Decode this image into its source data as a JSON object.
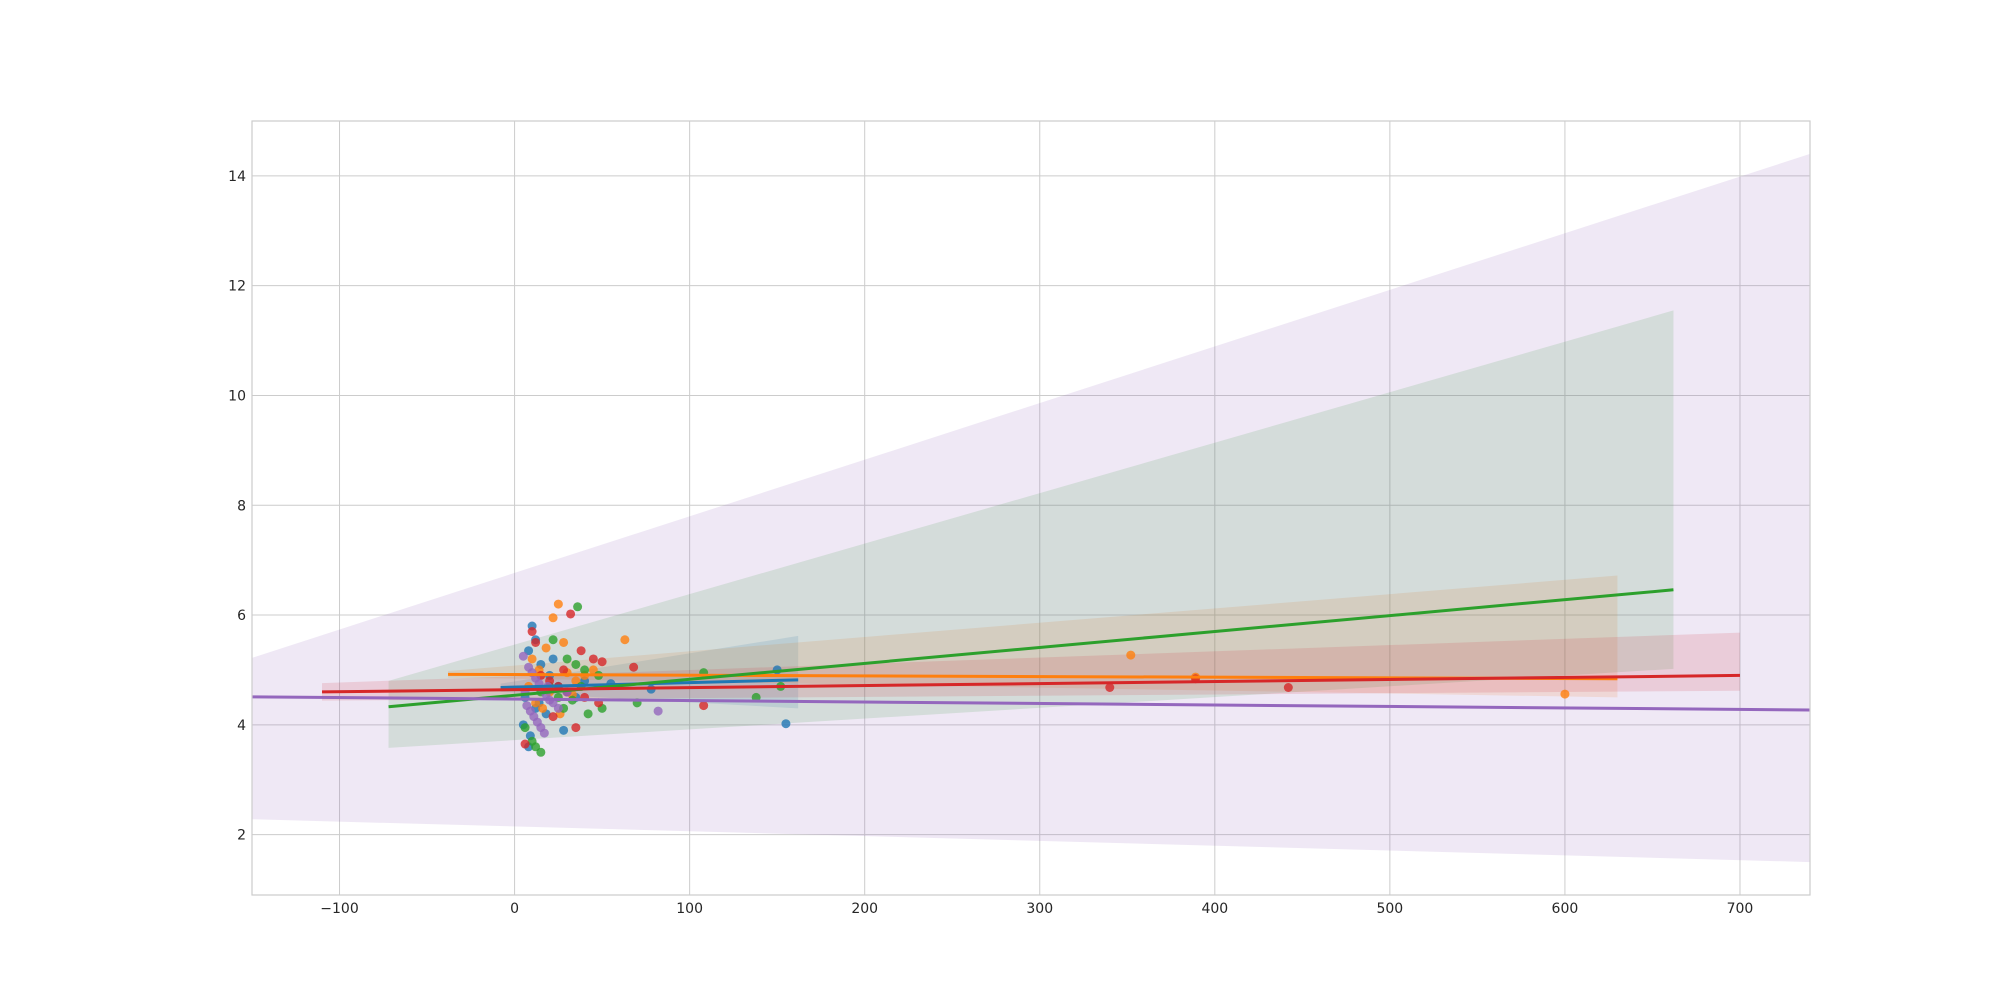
{
  "chart_data": {
    "type": "scatter",
    "title": "",
    "xlabel": "",
    "ylabel": "",
    "xlim": [
      -150,
      740
    ],
    "ylim": [
      0.9,
      15
    ],
    "x_ticks": [
      -100,
      0,
      100,
      200,
      300,
      400,
      500,
      600,
      700
    ],
    "y_ticks": [
      2,
      4,
      6,
      8,
      10,
      12,
      14
    ],
    "grid": true,
    "legend": "none",
    "series": [
      {
        "color": "#1f77b4",
        "fit": {
          "x": [
            -8,
            162
          ],
          "y": [
            4.68,
            4.82
          ]
        },
        "band": {
          "upper": [
            4.75,
            5.62
          ],
          "lower": [
            4.6,
            4.3
          ]
        },
        "points": [
          [
            10,
            5.8
          ],
          [
            12,
            5.55
          ],
          [
            8,
            5.35
          ],
          [
            15,
            5.1
          ],
          [
            20,
            4.9
          ],
          [
            25,
            4.7
          ],
          [
            6,
            4.5
          ],
          [
            14,
            4.4
          ],
          [
            18,
            4.2
          ],
          [
            5,
            4.0
          ],
          [
            9,
            3.8
          ],
          [
            30,
            4.6
          ],
          [
            40,
            4.8
          ],
          [
            55,
            4.75
          ],
          [
            78,
            4.65
          ],
          [
            150,
            5.0
          ],
          [
            155,
            4.02
          ],
          [
            28,
            3.9
          ],
          [
            8,
            3.6
          ],
          [
            12,
            4.3
          ],
          [
            35,
            4.5
          ],
          [
            22,
            5.2
          ]
        ]
      },
      {
        "color": "#ff7f0e",
        "fit": {
          "x": [
            -38,
            630
          ],
          "y": [
            4.92,
            4.84
          ]
        },
        "band": {
          "upper": [
            4.98,
            6.72
          ],
          "lower": [
            4.86,
            4.5
          ]
        },
        "points": [
          [
            25,
            6.2
          ],
          [
            22,
            5.95
          ],
          [
            63,
            5.55
          ],
          [
            28,
            5.5
          ],
          [
            18,
            5.4
          ],
          [
            10,
            5.2
          ],
          [
            14,
            5.0
          ],
          [
            30,
            4.95
          ],
          [
            35,
            4.8
          ],
          [
            45,
            5.0
          ],
          [
            20,
            4.6
          ],
          [
            12,
            4.4
          ],
          [
            26,
            4.2
          ],
          [
            40,
            4.9
          ],
          [
            352,
            5.27
          ],
          [
            389,
            4.87
          ],
          [
            600,
            4.56
          ],
          [
            16,
            4.3
          ],
          [
            8,
            4.7
          ],
          [
            33,
            4.55
          ]
        ]
      },
      {
        "color": "#2ca02c",
        "fit": {
          "x": [
            -72,
            662
          ],
          "y": [
            4.33,
            6.46
          ]
        },
        "band": {
          "upper": [
            4.8,
            11.55
          ],
          "lower": [
            3.58,
            5.02
          ]
        },
        "points": [
          [
            36,
            6.15
          ],
          [
            22,
            5.55
          ],
          [
            30,
            5.2
          ],
          [
            35,
            5.1
          ],
          [
            40,
            5.0
          ],
          [
            48,
            4.9
          ],
          [
            20,
            4.7
          ],
          [
            15,
            4.6
          ],
          [
            25,
            4.5
          ],
          [
            28,
            4.3
          ],
          [
            42,
            4.2
          ],
          [
            50,
            4.3
          ],
          [
            70,
            4.4
          ],
          [
            138,
            4.5
          ],
          [
            152,
            4.7
          ],
          [
            10,
            3.7
          ],
          [
            15,
            3.5
          ],
          [
            6,
            3.95
          ],
          [
            12,
            3.6
          ],
          [
            38,
            4.7
          ],
          [
            108,
            4.95
          ],
          [
            33,
            4.45
          ]
        ]
      },
      {
        "color": "#d62728",
        "fit": {
          "x": [
            -110,
            700
          ],
          "y": [
            4.6,
            4.9
          ]
        },
        "band": {
          "upper": [
            4.76,
            5.68
          ],
          "lower": [
            4.44,
            4.62
          ]
        },
        "points": [
          [
            32,
            6.02
          ],
          [
            10,
            5.7
          ],
          [
            12,
            5.5
          ],
          [
            50,
            5.15
          ],
          [
            38,
            5.35
          ],
          [
            45,
            5.2
          ],
          [
            68,
            5.05
          ],
          [
            28,
            5.0
          ],
          [
            20,
            4.8
          ],
          [
            30,
            4.6
          ],
          [
            40,
            4.5
          ],
          [
            48,
            4.4
          ],
          [
            108,
            4.35
          ],
          [
            35,
            3.95
          ],
          [
            6,
            3.65
          ],
          [
            340,
            4.68
          ],
          [
            389,
            4.84
          ],
          [
            442,
            4.68
          ],
          [
            22,
            4.15
          ],
          [
            15,
            4.9
          ],
          [
            25,
            4.7
          ]
        ]
      },
      {
        "color": "#9467bd",
        "fit": {
          "x": [
            -150,
            740
          ],
          "y": [
            4.51,
            4.27
          ]
        },
        "band": {
          "upper": [
            5.22,
            14.4
          ],
          "lower": [
            2.28,
            1.5
          ]
        },
        "points": [
          [
            5,
            5.25
          ],
          [
            8,
            5.05
          ],
          [
            10,
            4.95
          ],
          [
            12,
            4.85
          ],
          [
            14,
            4.75
          ],
          [
            16,
            4.65
          ],
          [
            18,
            4.55
          ],
          [
            20,
            4.45
          ],
          [
            7,
            4.35
          ],
          [
            9,
            4.25
          ],
          [
            11,
            4.15
          ],
          [
            13,
            4.05
          ],
          [
            15,
            3.95
          ],
          [
            17,
            3.85
          ],
          [
            6,
            4.6
          ],
          [
            19,
            4.7
          ],
          [
            22,
            4.4
          ],
          [
            82,
            4.25
          ],
          [
            30,
            4.6
          ],
          [
            25,
            4.3
          ]
        ]
      }
    ]
  }
}
